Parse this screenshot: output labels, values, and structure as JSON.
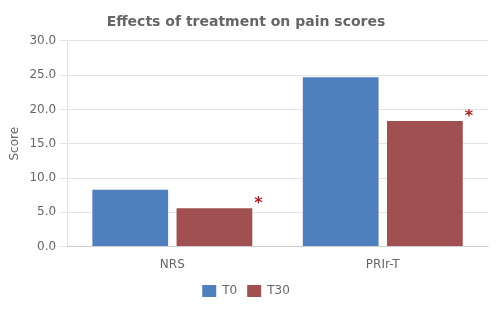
{
  "chart_data": {
    "type": "bar",
    "title": "Effects of treatment on pain scores",
    "categories": [
      "NRS",
      "PRIr-T"
    ],
    "series": [
      {
        "name": "T0",
        "color": "#4F7FBD",
        "values": [
          8.3,
          24.7
        ]
      },
      {
        "name": "T30",
        "color": "#A05050",
        "values": [
          5.6,
          18.3
        ]
      }
    ],
    "ylabel": "Score",
    "ylim": [
      0,
      30.0
    ],
    "yticks": [
      {
        "value": 0.0,
        "label": "0.0"
      },
      {
        "value": 5.0,
        "label": "5.0"
      },
      {
        "value": 10.0,
        "label": "10.0"
      },
      {
        "value": 15.0,
        "label": "15.0"
      },
      {
        "value": 20.0,
        "label": "20.0"
      },
      {
        "value": 25.0,
        "label": "25.0"
      },
      {
        "value": 30.0,
        "label": "30.0"
      }
    ],
    "grid": true,
    "legend": "bottom",
    "annotations": [
      {
        "text": "*",
        "series": "T30",
        "category": "NRS",
        "color": "#AA2222"
      },
      {
        "text": "*",
        "series": "T30",
        "category": "PRIr-T",
        "color": "#AA2222"
      }
    ]
  }
}
